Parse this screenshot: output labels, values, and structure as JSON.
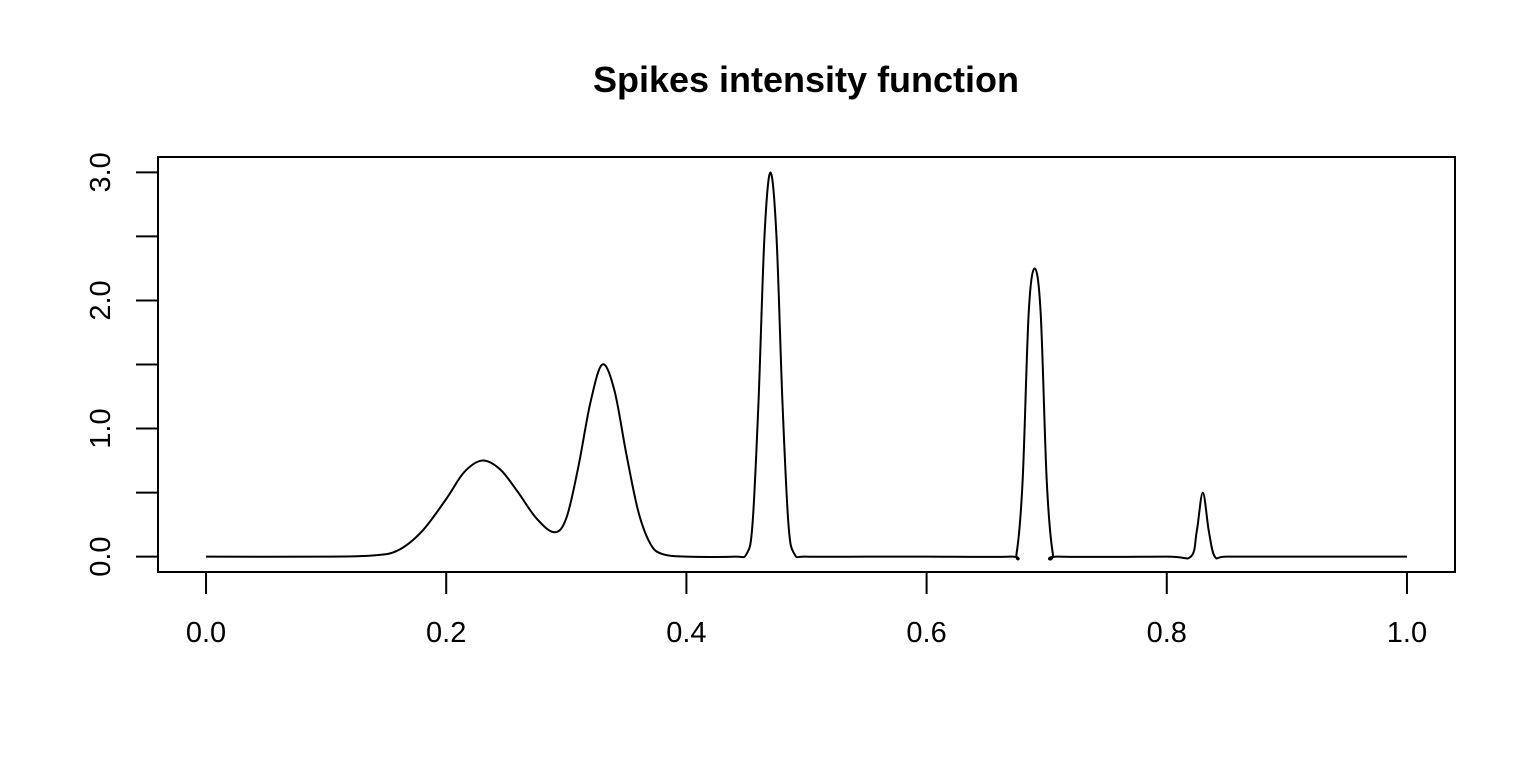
{
  "chart_data": {
    "type": "line",
    "title": "Spikes intensity function",
    "xlabel": "",
    "ylabel": "",
    "xlim": [
      -0.04,
      1.04
    ],
    "ylim": [
      -0.12,
      3.12
    ],
    "x_ticks": [
      {
        "value": 0.0,
        "label": "0.0"
      },
      {
        "value": 0.2,
        "label": "0.2"
      },
      {
        "value": 0.4,
        "label": "0.4"
      },
      {
        "value": 0.6,
        "label": "0.6"
      },
      {
        "value": 0.8,
        "label": "0.8"
      },
      {
        "value": 1.0,
        "label": "1.0"
      }
    ],
    "y_ticks": [
      {
        "value": 0.0,
        "label": "0.0"
      },
      {
        "value": 0.5,
        "label": ""
      },
      {
        "value": 1.0,
        "label": "1.0"
      },
      {
        "value": 1.5,
        "label": ""
      },
      {
        "value": 2.0,
        "label": "2.0"
      },
      {
        "value": 2.5,
        "label": ""
      },
      {
        "value": 3.0,
        "label": "3.0"
      }
    ],
    "grid": false,
    "legend": "none",
    "line_color": "#000000",
    "series": [
      {
        "x": [
          0.0,
          0.1,
          0.14,
          0.16,
          0.18,
          0.2,
          0.215,
          0.23,
          0.245,
          0.26,
          0.275,
          0.29,
          0.3,
          0.31,
          0.32,
          0.33,
          0.34,
          0.35,
          0.36,
          0.37,
          0.38,
          0.4,
          0.44,
          0.45,
          0.455,
          0.46,
          0.465,
          0.47,
          0.475,
          0.48,
          0.485,
          0.49,
          0.5,
          0.55,
          0.6,
          0.67,
          0.675,
          0.68,
          0.685,
          0.69,
          0.695,
          0.7,
          0.705,
          0.71,
          0.8,
          0.82,
          0.825,
          0.83,
          0.835,
          0.84,
          0.85,
          0.9,
          1.0
        ],
        "y": [
          0.0,
          0.0,
          0.01,
          0.05,
          0.2,
          0.45,
          0.66,
          0.75,
          0.68,
          0.5,
          0.3,
          0.19,
          0.3,
          0.7,
          1.2,
          1.5,
          1.3,
          0.8,
          0.35,
          0.1,
          0.02,
          0.0,
          0.0,
          0.02,
          0.25,
          1.2,
          2.5,
          3.0,
          2.5,
          1.2,
          0.25,
          0.02,
          0.0,
          0.0,
          0.0,
          0.0,
          0.03,
          0.6,
          1.9,
          2.25,
          1.9,
          0.6,
          0.03,
          0.0,
          0.0,
          0.0,
          0.2,
          0.5,
          0.2,
          0.0,
          0.0,
          0.0,
          0.0
        ]
      }
    ]
  }
}
